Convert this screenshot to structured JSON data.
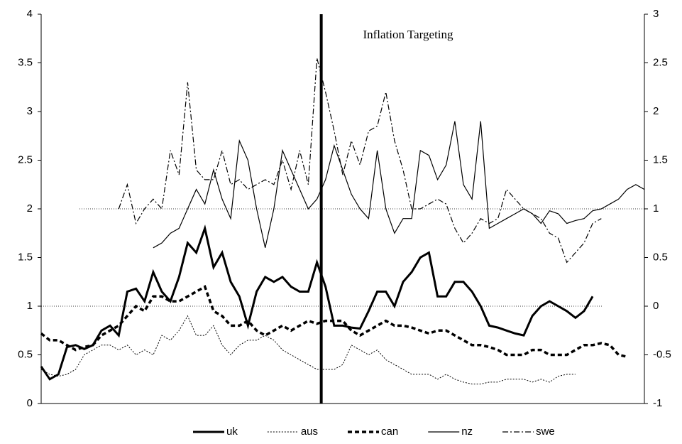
{
  "chart_data": {
    "type": "line",
    "annotation": "Inflation Targeting",
    "x": [
      0,
      2,
      4,
      6,
      8,
      10,
      12,
      14,
      16,
      18,
      20,
      22,
      24,
      26,
      28,
      30,
      32,
      34,
      36,
      38,
      40,
      42,
      44,
      46,
      48,
      50,
      52,
      54,
      56,
      58,
      60,
      62,
      64,
      66,
      68,
      70,
      72,
      74,
      76,
      78,
      80,
      82,
      84,
      86,
      88,
      90,
      92,
      94,
      96,
      98,
      100,
      102,
      104,
      106,
      108,
      110,
      112,
      114,
      116,
      118,
      120,
      122,
      124,
      126,
      128,
      130,
      132,
      134,
      136,
      138,
      140
    ],
    "xlim": [
      0,
      140
    ],
    "ylim": [
      0,
      4
    ],
    "yticks": [
      0,
      0.5,
      1,
      1.5,
      2,
      2.5,
      3,
      3.5,
      4
    ],
    "y2lim": [
      -1,
      3
    ],
    "y2ticks": [
      -1,
      -0.5,
      0,
      0.5,
      1,
      1.5,
      2,
      2.5,
      3
    ],
    "vline": 65,
    "hlines": [
      2,
      1
    ],
    "legend": "bottom",
    "series": [
      {
        "name": "uk",
        "color": "#000000",
        "width": 3,
        "dash": "none",
        "values": [
          0.38,
          0.25,
          0.3,
          0.58,
          0.6,
          0.56,
          0.6,
          0.75,
          0.8,
          0.7,
          1.15,
          1.18,
          1.05,
          1.35,
          1.15,
          1.05,
          1.3,
          1.65,
          1.55,
          1.8,
          1.4,
          1.55,
          1.25,
          1.1,
          0.8,
          1.15,
          1.3,
          1.25,
          1.3,
          1.2,
          1.15,
          1.15,
          1.45,
          1.2,
          0.8,
          0.8,
          0.78,
          0.77,
          0.95,
          1.15,
          1.15,
          1.0,
          1.25,
          1.35,
          1.5,
          1.55,
          1.1,
          1.1,
          1.25,
          1.25,
          1.15,
          1.0,
          0.8,
          0.78,
          0.75,
          0.72,
          0.7,
          0.9,
          1.0,
          1.05,
          1.0,
          0.95,
          0.88,
          0.95,
          1.1,
          null,
          null,
          null,
          null,
          null,
          null
        ]
      },
      {
        "name": "aus",
        "color": "#000000",
        "width": 1,
        "dash": "2 2",
        "values": [
          0.35,
          0.3,
          0.28,
          0.3,
          0.35,
          0.5,
          0.55,
          0.6,
          0.6,
          0.55,
          0.6,
          0.5,
          0.55,
          0.5,
          0.7,
          0.65,
          0.75,
          0.9,
          0.7,
          0.7,
          0.8,
          0.6,
          0.5,
          0.6,
          0.65,
          0.65,
          0.7,
          0.65,
          0.55,
          0.5,
          0.45,
          0.4,
          0.35,
          0.35,
          0.35,
          0.4,
          0.6,
          0.55,
          0.5,
          0.55,
          0.45,
          0.4,
          0.35,
          0.3,
          0.3,
          0.3,
          0.25,
          0.3,
          0.25,
          0.22,
          0.2,
          0.2,
          0.22,
          0.22,
          0.25,
          0.25,
          0.25,
          0.22,
          0.25,
          0.22,
          0.28,
          0.3,
          0.3,
          null,
          null,
          null,
          null,
          null,
          null,
          null,
          null
        ]
      },
      {
        "name": "can",
        "color": "#000000",
        "width": 3.5,
        "dash": "6 4",
        "values": [
          0.72,
          0.65,
          0.65,
          0.6,
          0.55,
          0.58,
          0.6,
          0.7,
          0.75,
          0.8,
          0.9,
          1.0,
          0.95,
          1.1,
          1.1,
          1.05,
          1.05,
          1.1,
          1.15,
          1.2,
          0.95,
          0.9,
          0.8,
          0.8,
          0.85,
          0.75,
          0.7,
          0.75,
          0.8,
          0.75,
          0.8,
          0.85,
          0.82,
          0.85,
          0.85,
          0.85,
          0.75,
          0.7,
          0.75,
          0.8,
          0.85,
          0.8,
          0.8,
          0.78,
          0.75,
          0.72,
          0.75,
          0.75,
          0.7,
          0.65,
          0.6,
          0.6,
          0.58,
          0.55,
          0.5,
          0.5,
          0.5,
          0.55,
          0.55,
          0.5,
          0.5,
          0.5,
          0.55,
          0.6,
          0.6,
          0.62,
          0.6,
          0.5,
          0.48,
          null,
          null
        ]
      },
      {
        "name": "nz",
        "color": "#000000",
        "width": 1.2,
        "dash": "none",
        "axis": "y2",
        "values": [
          null,
          null,
          null,
          null,
          null,
          null,
          null,
          null,
          null,
          null,
          null,
          null,
          null,
          0.6,
          0.65,
          0.75,
          0.8,
          1.0,
          1.2,
          1.05,
          1.4,
          1.1,
          0.9,
          1.7,
          1.5,
          1.0,
          0.6,
          1.0,
          1.6,
          1.4,
          1.2,
          1.0,
          1.1,
          1.3,
          1.65,
          1.4,
          1.15,
          1.0,
          0.9,
          1.6,
          1.0,
          0.75,
          0.9,
          0.9,
          1.6,
          1.55,
          1.3,
          1.45,
          1.9,
          1.25,
          1.1,
          1.9,
          0.8,
          0.85,
          0.9,
          0.95,
          1.0,
          0.95,
          0.85,
          0.98,
          0.95,
          0.85,
          0.88,
          0.9,
          0.98,
          1.0,
          1.05,
          1.1,
          1.2,
          1.25,
          1.2
        ]
      },
      {
        "name": "swe",
        "color": "#000000",
        "width": 1.2,
        "dash": "8 3 2 3",
        "axis": "y2",
        "values": [
          null,
          null,
          null,
          null,
          null,
          null,
          null,
          null,
          null,
          1.0,
          1.25,
          0.85,
          1.0,
          1.1,
          1.0,
          1.6,
          1.35,
          2.3,
          1.4,
          1.3,
          1.3,
          1.6,
          1.25,
          1.3,
          1.2,
          1.25,
          1.3,
          1.25,
          1.5,
          1.2,
          1.6,
          1.25,
          2.55,
          2.2,
          1.8,
          1.35,
          1.7,
          1.45,
          1.8,
          1.85,
          2.2,
          1.7,
          1.4,
          1.0,
          1.0,
          1.05,
          1.1,
          1.05,
          0.8,
          0.65,
          0.75,
          0.9,
          0.85,
          0.9,
          1.2,
          1.1,
          1.0,
          0.95,
          0.9,
          0.75,
          0.7,
          0.45,
          0.55,
          0.65,
          0.85,
          0.9,
          null,
          null,
          null,
          null,
          null
        ]
      }
    ]
  }
}
